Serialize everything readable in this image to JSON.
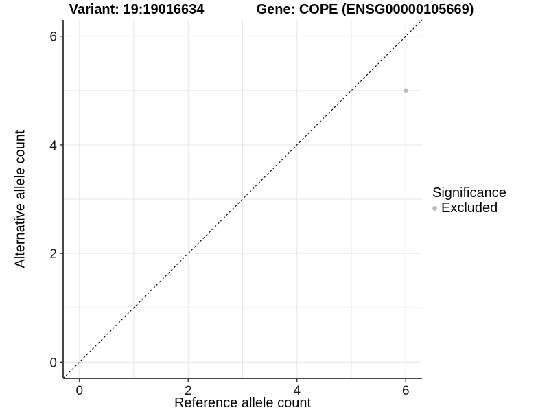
{
  "chart_data": {
    "type": "scatter",
    "title_left": "Variant: 19:19016634",
    "title_right": "Gene: COPE (ENSG00000105669)",
    "xlabel": "Reference allele count",
    "ylabel": "Alternative allele count",
    "xlim": [
      -0.3,
      6.3
    ],
    "ylim": [
      -0.3,
      6.3
    ],
    "x_ticks": [
      0,
      2,
      4,
      6
    ],
    "y_ticks": [
      0,
      2,
      4,
      6
    ],
    "gridlines_x": [
      0,
      1,
      2,
      3,
      4,
      5,
      6
    ],
    "gridlines_y": [
      0,
      1,
      2,
      3,
      4,
      5,
      6
    ],
    "grid_on": true,
    "points": [
      {
        "x": 6,
        "y": 5,
        "series": "Excluded"
      }
    ],
    "abline": {
      "slope": 1,
      "intercept": 0,
      "style": "dashed"
    },
    "legend": {
      "position": "right",
      "title": "Significance",
      "entries": [
        {
          "label": "Excluded",
          "color": "#bebebe"
        }
      ]
    },
    "colors": {
      "point": "#bebebe",
      "gridline": "#e6e6e6",
      "axis_line": "#333333",
      "tick_text": "#1a1a1a",
      "abline": "#000000",
      "background": "#ffffff"
    }
  }
}
